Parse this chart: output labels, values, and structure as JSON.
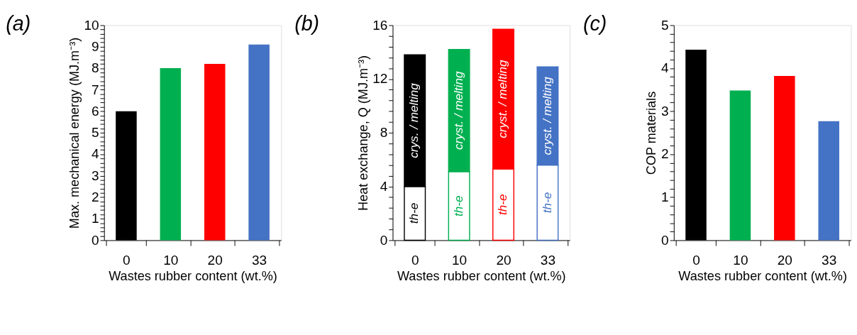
{
  "chart_data": [
    {
      "type": "bar",
      "title": "(a)",
      "xlabel": "Wastes rubber content (wt.%)",
      "ylabel": "Max. mechanical  energy (MJ.m⁻³)",
      "categories": [
        "0",
        "10",
        "20",
        "33"
      ],
      "values": [
        6.0,
        8.0,
        8.2,
        9.1
      ],
      "colors": [
        "#000000",
        "#00b050",
        "#ff0000",
        "#4472c4"
      ],
      "ylim": [
        0,
        10
      ],
      "yticks": [
        0,
        1,
        2,
        3,
        4,
        5,
        6,
        7,
        8,
        9,
        10,
        {
          "value": 0.2,
          "label": null
        },
        {
          "value": 0.4,
          "label": null
        },
        {
          "value": 0.6,
          "label": null
        },
        {
          "value": 0.8,
          "label": null
        },
        {
          "value": 1.2,
          "label": null
        },
        {
          "value": 1.4,
          "label": null
        },
        {
          "value": 1.6,
          "label": null
        },
        {
          "value": 1.8,
          "label": null
        },
        {
          "value": 2.2,
          "label": null
        },
        {
          "value": 2.4,
          "label": null
        },
        {
          "value": 2.6,
          "label": null
        },
        {
          "value": 2.8,
          "label": null
        },
        {
          "value": 3.2,
          "label": null
        },
        {
          "value": 3.4,
          "label": null
        },
        {
          "value": 3.6,
          "label": null
        },
        {
          "value": 3.8,
          "label": null
        },
        {
          "value": 4.2,
          "label": null
        },
        {
          "value": 4.4,
          "label": null
        },
        {
          "value": 4.6,
          "label": null
        },
        {
          "value": 4.8,
          "label": null
        },
        {
          "value": 5.2,
          "label": null
        },
        {
          "value": 5.4,
          "label": null
        },
        {
          "value": 5.6,
          "label": null
        },
        {
          "value": 5.8,
          "label": null
        },
        {
          "value": 6.2,
          "label": null
        },
        {
          "value": 6.4,
          "label": null
        },
        {
          "value": 6.6,
          "label": null
        },
        {
          "value": 6.8,
          "label": null
        },
        {
          "value": 7.2,
          "label": null
        },
        {
          "value": 7.4,
          "label": null
        },
        {
          "value": 7.6,
          "label": null
        },
        {
          "value": 7.8,
          "label": null
        },
        {
          "value": 8.2,
          "label": null
        },
        {
          "value": 8.4,
          "label": null
        },
        {
          "value": 8.6,
          "label": null
        },
        {
          "value": 8.8,
          "label": null
        },
        {
          "value": 9.2,
          "label": null
        },
        {
          "value": 9.4,
          "label": null
        },
        {
          "value": 9.6,
          "label": null
        },
        {
          "value": 9.8,
          "label": null
        }
      ],
      "grid": false
    },
    {
      "type": "bar",
      "title": "(b)",
      "xlabel": "Wastes rubber content (wt.%)",
      "ylabel": "Heat exchange, Q (MJ.m⁻³)",
      "categories": [
        "0",
        "10",
        "20",
        "33"
      ],
      "stacked": true,
      "series": [
        {
          "color": "#ffffff",
          "values": [
            4.0,
            5.1,
            5.3,
            5.6
          ]
        },
        {
          "colors": [
            "#000000",
            "#00b050",
            "#ff0000",
            "#4472c4"
          ],
          "values": [
            9.8,
            9.1,
            10.4,
            7.3
          ]
        }
      ],
      "annotations": [
        "th-e",
        "th-e",
        "th-e",
        "th-e",
        "crys. / melting",
        "cryst. / melting",
        "cryst. / melting",
        "cryst. / melting"
      ],
      "ylim": [
        0,
        16
      ],
      "yticks": [
        0,
        4,
        8,
        12,
        16,
        {
          "value": 0.8,
          "label": null
        },
        {
          "value": 1.6,
          "label": null
        },
        {
          "value": 2.4,
          "label": null
        },
        {
          "value": 3.2,
          "label": null
        },
        {
          "value": 4.8,
          "label": null
        },
        {
          "value": 5.6,
          "label": null
        },
        {
          "value": 6.4,
          "label": null
        },
        {
          "value": 7.2,
          "label": null
        },
        {
          "value": 8.8,
          "label": null
        },
        {
          "value": 9.6,
          "label": null
        },
        {
          "value": 10.4,
          "label": null
        },
        {
          "value": 11.2,
          "label": null
        },
        {
          "value": 12.8,
          "label": null
        },
        {
          "value": 13.6,
          "label": null
        },
        {
          "value": 14.4,
          "label": null
        },
        {
          "value": 15.2,
          "label": null
        }
      ],
      "grid": false
    },
    {
      "type": "bar",
      "title": "(c)",
      "xlabel": "Wastes rubber content (wt.%)",
      "ylabel": "COP materials",
      "categories": [
        "0",
        "10",
        "20",
        "33"
      ],
      "values": [
        4.43,
        3.48,
        3.82,
        2.77
      ],
      "colors": [
        "#000000",
        "#00b050",
        "#ff0000",
        "#4472c4"
      ],
      "ylim": [
        0,
        5
      ],
      "yticks": [
        0,
        1,
        2,
        3,
        4,
        5,
        {
          "value": 0.2,
          "label": null
        },
        {
          "value": 0.4,
          "label": null
        },
        {
          "value": 0.6,
          "label": null
        },
        {
          "value": 0.8,
          "label": null
        },
        {
          "value": 1.2,
          "label": null
        },
        {
          "value": 1.4,
          "label": null
        },
        {
          "value": 1.6,
          "label": null
        },
        {
          "value": 1.8,
          "label": null
        },
        {
          "value": 2.2,
          "label": null
        },
        {
          "value": 2.4,
          "label": null
        },
        {
          "value": 2.6,
          "label": null
        },
        {
          "value": 2.8,
          "label": null
        },
        {
          "value": 3.2,
          "label": null
        },
        {
          "value": 3.4,
          "label": null
        },
        {
          "value": 3.6,
          "label": null
        },
        {
          "value": 3.8,
          "label": null
        },
        {
          "value": 4.2,
          "label": null
        },
        {
          "value": 4.4,
          "label": null
        },
        {
          "value": 4.6,
          "label": null
        },
        {
          "value": 4.8,
          "label": null
        }
      ],
      "grid": false
    }
  ]
}
